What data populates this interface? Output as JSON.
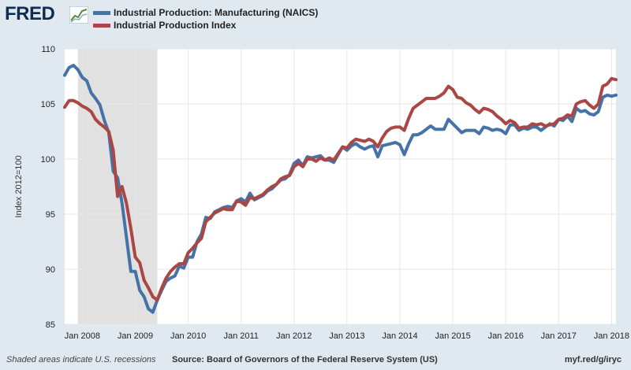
{
  "header": {
    "logo_text": "FRED",
    "logo_icon": "chart-line-icon"
  },
  "legend": [
    {
      "label": "Industrial Production: Manufacturing (NAICS)",
      "color": "#4572a7"
    },
    {
      "label": "Industrial Production Index",
      "color": "#aa4643"
    }
  ],
  "footer": {
    "recession_note": "Shaded areas indicate U.S. recessions",
    "source": "Source: Board of Governors of the Federal Reserve System (US)",
    "link": "myf.red/g/iryc"
  },
  "chart_data": {
    "type": "line",
    "ylabel": "Index 2012=100",
    "ylim": [
      85,
      110
    ],
    "yticks": [
      85,
      90,
      95,
      100,
      105,
      110
    ],
    "xlim": [
      "2007-09",
      "2018-02"
    ],
    "xticks": [
      {
        "label": "Jan 2008",
        "date": "2008-01"
      },
      {
        "label": "Jan 2009",
        "date": "2009-01"
      },
      {
        "label": "Jan 2010",
        "date": "2010-01"
      },
      {
        "label": "Jan 2011",
        "date": "2011-01"
      },
      {
        "label": "Jan 2012",
        "date": "2012-01"
      },
      {
        "label": "Jan 2013",
        "date": "2013-01"
      },
      {
        "label": "Jan 2014",
        "date": "2014-01"
      },
      {
        "label": "Jan 2015",
        "date": "2015-01"
      },
      {
        "label": "Jan 2016",
        "date": "2016-01"
      },
      {
        "label": "Jan 2017",
        "date": "2017-01"
      },
      {
        "label": "Jan 2018",
        "date": "2018-01"
      }
    ],
    "recession": {
      "start": "2007-12",
      "end": "2009-06",
      "color": "#e1e1e1"
    },
    "grid": true,
    "series": [
      {
        "name": "Industrial Production: Manufacturing (NAICS)",
        "color": "#4572a7",
        "points": [
          [
            "2007-09",
            107.6
          ],
          [
            "2007-10",
            108.3
          ],
          [
            "2007-11",
            108.5
          ],
          [
            "2007-12",
            108.1
          ],
          [
            "2008-01",
            107.4
          ],
          [
            "2008-02",
            107.1
          ],
          [
            "2008-03",
            106.0
          ],
          [
            "2008-04",
            105.5
          ],
          [
            "2008-05",
            104.9
          ],
          [
            "2008-06",
            103.5
          ],
          [
            "2008-07",
            102.4
          ],
          [
            "2008-08",
            98.9
          ],
          [
            "2008-09",
            98.3
          ],
          [
            "2008-10",
            96.0
          ],
          [
            "2008-11",
            92.9
          ],
          [
            "2008-12",
            89.8
          ],
          [
            "2009-01",
            89.8
          ],
          [
            "2009-02",
            88.1
          ],
          [
            "2009-03",
            87.5
          ],
          [
            "2009-04",
            86.4
          ],
          [
            "2009-05",
            86.1
          ],
          [
            "2009-06",
            87.2
          ],
          [
            "2009-07",
            88.1
          ],
          [
            "2009-08",
            88.9
          ],
          [
            "2009-09",
            89.2
          ],
          [
            "2009-10",
            89.4
          ],
          [
            "2009-11",
            90.3
          ],
          [
            "2009-12",
            90.1
          ],
          [
            "2010-01",
            91.1
          ],
          [
            "2010-02",
            91.1
          ],
          [
            "2010-03",
            92.5
          ],
          [
            "2010-04",
            93.2
          ],
          [
            "2010-05",
            94.7
          ],
          [
            "2010-06",
            94.6
          ],
          [
            "2010-07",
            95.2
          ],
          [
            "2010-08",
            95.4
          ],
          [
            "2010-09",
            95.6
          ],
          [
            "2010-10",
            95.7
          ],
          [
            "2010-11",
            95.6
          ],
          [
            "2010-12",
            96.2
          ],
          [
            "2011-01",
            96.4
          ],
          [
            "2011-02",
            96.1
          ],
          [
            "2011-03",
            96.9
          ],
          [
            "2011-04",
            96.3
          ],
          [
            "2011-05",
            96.5
          ],
          [
            "2011-06",
            96.7
          ],
          [
            "2011-07",
            97.1
          ],
          [
            "2011-08",
            97.3
          ],
          [
            "2011-09",
            97.7
          ],
          [
            "2011-10",
            98.1
          ],
          [
            "2011-11",
            98.2
          ],
          [
            "2011-12",
            98.6
          ],
          [
            "2012-01",
            99.6
          ],
          [
            "2012-02",
            99.9
          ],
          [
            "2012-03",
            99.4
          ],
          [
            "2012-04",
            100.2
          ],
          [
            "2012-05",
            100.1
          ],
          [
            "2012-06",
            100.2
          ],
          [
            "2012-07",
            100.3
          ],
          [
            "2012-08",
            99.9
          ],
          [
            "2012-09",
            99.9
          ],
          [
            "2012-10",
            99.7
          ],
          [
            "2012-11",
            100.4
          ],
          [
            "2012-12",
            101.1
          ],
          [
            "2013-01",
            100.8
          ],
          [
            "2013-02",
            101.2
          ],
          [
            "2013-03",
            101.4
          ],
          [
            "2013-04",
            101.1
          ],
          [
            "2013-05",
            100.9
          ],
          [
            "2013-06",
            101.1
          ],
          [
            "2013-07",
            101.2
          ],
          [
            "2013-08",
            100.2
          ],
          [
            "2013-09",
            101.2
          ],
          [
            "2013-10",
            101.3
          ],
          [
            "2013-11",
            101.4
          ],
          [
            "2013-12",
            101.5
          ],
          [
            "2014-01",
            101.3
          ],
          [
            "2014-02",
            100.4
          ],
          [
            "2014-03",
            101.4
          ],
          [
            "2014-04",
            102.2
          ],
          [
            "2014-05",
            102.2
          ],
          [
            "2014-06",
            102.4
          ],
          [
            "2014-07",
            102.7
          ],
          [
            "2014-08",
            103.0
          ],
          [
            "2014-09",
            102.7
          ],
          [
            "2014-10",
            102.7
          ],
          [
            "2014-11",
            102.7
          ],
          [
            "2014-12",
            103.6
          ],
          [
            "2015-01",
            103.2
          ],
          [
            "2015-02",
            102.8
          ],
          [
            "2015-03",
            102.4
          ],
          [
            "2015-04",
            102.6
          ],
          [
            "2015-05",
            102.6
          ],
          [
            "2015-06",
            102.6
          ],
          [
            "2015-07",
            102.3
          ],
          [
            "2015-08",
            102.9
          ],
          [
            "2015-09",
            102.8
          ],
          [
            "2015-10",
            102.6
          ],
          [
            "2015-11",
            102.7
          ],
          [
            "2015-12",
            102.6
          ],
          [
            "2016-01",
            102.3
          ],
          [
            "2016-02",
            103.1
          ],
          [
            "2016-03",
            103.1
          ],
          [
            "2016-04",
            102.6
          ],
          [
            "2016-05",
            102.8
          ],
          [
            "2016-06",
            102.7
          ],
          [
            "2016-07",
            102.9
          ],
          [
            "2016-08",
            102.9
          ],
          [
            "2016-09",
            102.6
          ],
          [
            "2016-10",
            102.9
          ],
          [
            "2016-11",
            103.2
          ],
          [
            "2016-12",
            103.0
          ],
          [
            "2017-01",
            103.6
          ],
          [
            "2017-02",
            103.5
          ],
          [
            "2017-03",
            103.9
          ],
          [
            "2017-04",
            103.4
          ],
          [
            "2017-05",
            104.6
          ],
          [
            "2017-06",
            104.3
          ],
          [
            "2017-07",
            104.4
          ],
          [
            "2017-08",
            104.1
          ],
          [
            "2017-09",
            104.0
          ],
          [
            "2017-10",
            104.3
          ],
          [
            "2017-11",
            105.6
          ],
          [
            "2017-12",
            105.8
          ],
          [
            "2018-01",
            105.7
          ],
          [
            "2018-02",
            105.8
          ]
        ]
      },
      {
        "name": "Industrial Production Index",
        "color": "#aa4643",
        "points": [
          [
            "2007-09",
            104.7
          ],
          [
            "2007-10",
            105.3
          ],
          [
            "2007-11",
            105.3
          ],
          [
            "2007-12",
            105.1
          ],
          [
            "2008-01",
            104.8
          ],
          [
            "2008-02",
            104.6
          ],
          [
            "2008-03",
            104.3
          ],
          [
            "2008-04",
            103.6
          ],
          [
            "2008-05",
            103.2
          ],
          [
            "2008-06",
            102.9
          ],
          [
            "2008-07",
            102.5
          ],
          [
            "2008-08",
            100.8
          ],
          [
            "2008-09",
            96.6
          ],
          [
            "2008-10",
            97.5
          ],
          [
            "2008-11",
            96.0
          ],
          [
            "2008-12",
            93.7
          ],
          [
            "2009-01",
            91.1
          ],
          [
            "2009-02",
            90.6
          ],
          [
            "2009-03",
            89.0
          ],
          [
            "2009-04",
            88.3
          ],
          [
            "2009-05",
            87.5
          ],
          [
            "2009-06",
            87.2
          ],
          [
            "2009-07",
            88.3
          ],
          [
            "2009-08",
            89.2
          ],
          [
            "2009-09",
            89.8
          ],
          [
            "2009-10",
            90.2
          ],
          [
            "2009-11",
            90.5
          ],
          [
            "2009-12",
            90.5
          ],
          [
            "2010-01",
            91.5
          ],
          [
            "2010-02",
            91.9
          ],
          [
            "2010-03",
            92.4
          ],
          [
            "2010-04",
            92.8
          ],
          [
            "2010-05",
            94.3
          ],
          [
            "2010-06",
            94.7
          ],
          [
            "2010-07",
            95.1
          ],
          [
            "2010-08",
            95.3
          ],
          [
            "2010-09",
            95.5
          ],
          [
            "2010-10",
            95.4
          ],
          [
            "2010-11",
            95.4
          ],
          [
            "2010-12",
            96.2
          ],
          [
            "2011-01",
            96.1
          ],
          [
            "2011-02",
            95.8
          ],
          [
            "2011-03",
            96.5
          ],
          [
            "2011-04",
            96.4
          ],
          [
            "2011-05",
            96.6
          ],
          [
            "2011-06",
            96.8
          ],
          [
            "2011-07",
            97.2
          ],
          [
            "2011-08",
            97.5
          ],
          [
            "2011-09",
            97.7
          ],
          [
            "2011-10",
            98.2
          ],
          [
            "2011-11",
            98.4
          ],
          [
            "2011-12",
            98.5
          ],
          [
            "2012-01",
            99.3
          ],
          [
            "2012-02",
            99.6
          ],
          [
            "2012-03",
            99.3
          ],
          [
            "2012-04",
            100.0
          ],
          [
            "2012-05",
            100.0
          ],
          [
            "2012-06",
            99.8
          ],
          [
            "2012-07",
            100.1
          ],
          [
            "2012-08",
            99.9
          ],
          [
            "2012-09",
            100.1
          ],
          [
            "2012-10",
            99.9
          ],
          [
            "2012-11",
            100.5
          ],
          [
            "2012-12",
            101.1
          ],
          [
            "2013-01",
            101.0
          ],
          [
            "2013-02",
            101.5
          ],
          [
            "2013-03",
            101.8
          ],
          [
            "2013-04",
            101.7
          ],
          [
            "2013-05",
            101.6
          ],
          [
            "2013-06",
            101.8
          ],
          [
            "2013-07",
            101.6
          ],
          [
            "2013-08",
            101.1
          ],
          [
            "2013-09",
            101.9
          ],
          [
            "2013-10",
            102.5
          ],
          [
            "2013-11",
            102.8
          ],
          [
            "2013-12",
            102.9
          ],
          [
            "2014-01",
            102.9
          ],
          [
            "2014-02",
            102.6
          ],
          [
            "2014-03",
            103.7
          ],
          [
            "2014-04",
            104.6
          ],
          [
            "2014-05",
            104.9
          ],
          [
            "2014-06",
            105.2
          ],
          [
            "2014-07",
            105.5
          ],
          [
            "2014-08",
            105.5
          ],
          [
            "2014-09",
            105.5
          ],
          [
            "2014-10",
            105.7
          ],
          [
            "2014-11",
            106.0
          ],
          [
            "2014-12",
            106.6
          ],
          [
            "2015-01",
            106.3
          ],
          [
            "2015-02",
            105.6
          ],
          [
            "2015-03",
            105.5
          ],
          [
            "2015-04",
            105.1
          ],
          [
            "2015-05",
            104.9
          ],
          [
            "2015-06",
            104.5
          ],
          [
            "2015-07",
            104.2
          ],
          [
            "2015-08",
            104.6
          ],
          [
            "2015-09",
            104.5
          ],
          [
            "2015-10",
            104.3
          ],
          [
            "2015-11",
            103.9
          ],
          [
            "2015-12",
            103.6
          ],
          [
            "2016-01",
            103.2
          ],
          [
            "2016-02",
            103.5
          ],
          [
            "2016-03",
            103.3
          ],
          [
            "2016-04",
            102.8
          ],
          [
            "2016-05",
            102.9
          ],
          [
            "2016-06",
            102.9
          ],
          [
            "2016-07",
            103.2
          ],
          [
            "2016-08",
            103.1
          ],
          [
            "2016-09",
            103.2
          ],
          [
            "2016-10",
            103.0
          ],
          [
            "2016-11",
            103.1
          ],
          [
            "2016-12",
            103.2
          ],
          [
            "2017-01",
            103.6
          ],
          [
            "2017-02",
            103.7
          ],
          [
            "2017-03",
            104.0
          ],
          [
            "2017-04",
            103.9
          ],
          [
            "2017-05",
            105.0
          ],
          [
            "2017-06",
            105.2
          ],
          [
            "2017-07",
            105.3
          ],
          [
            "2017-08",
            104.9
          ],
          [
            "2017-09",
            104.6
          ],
          [
            "2017-10",
            105.0
          ],
          [
            "2017-11",
            106.6
          ],
          [
            "2017-12",
            106.8
          ],
          [
            "2018-01",
            107.3
          ],
          [
            "2018-02",
            107.2
          ]
        ]
      }
    ]
  }
}
